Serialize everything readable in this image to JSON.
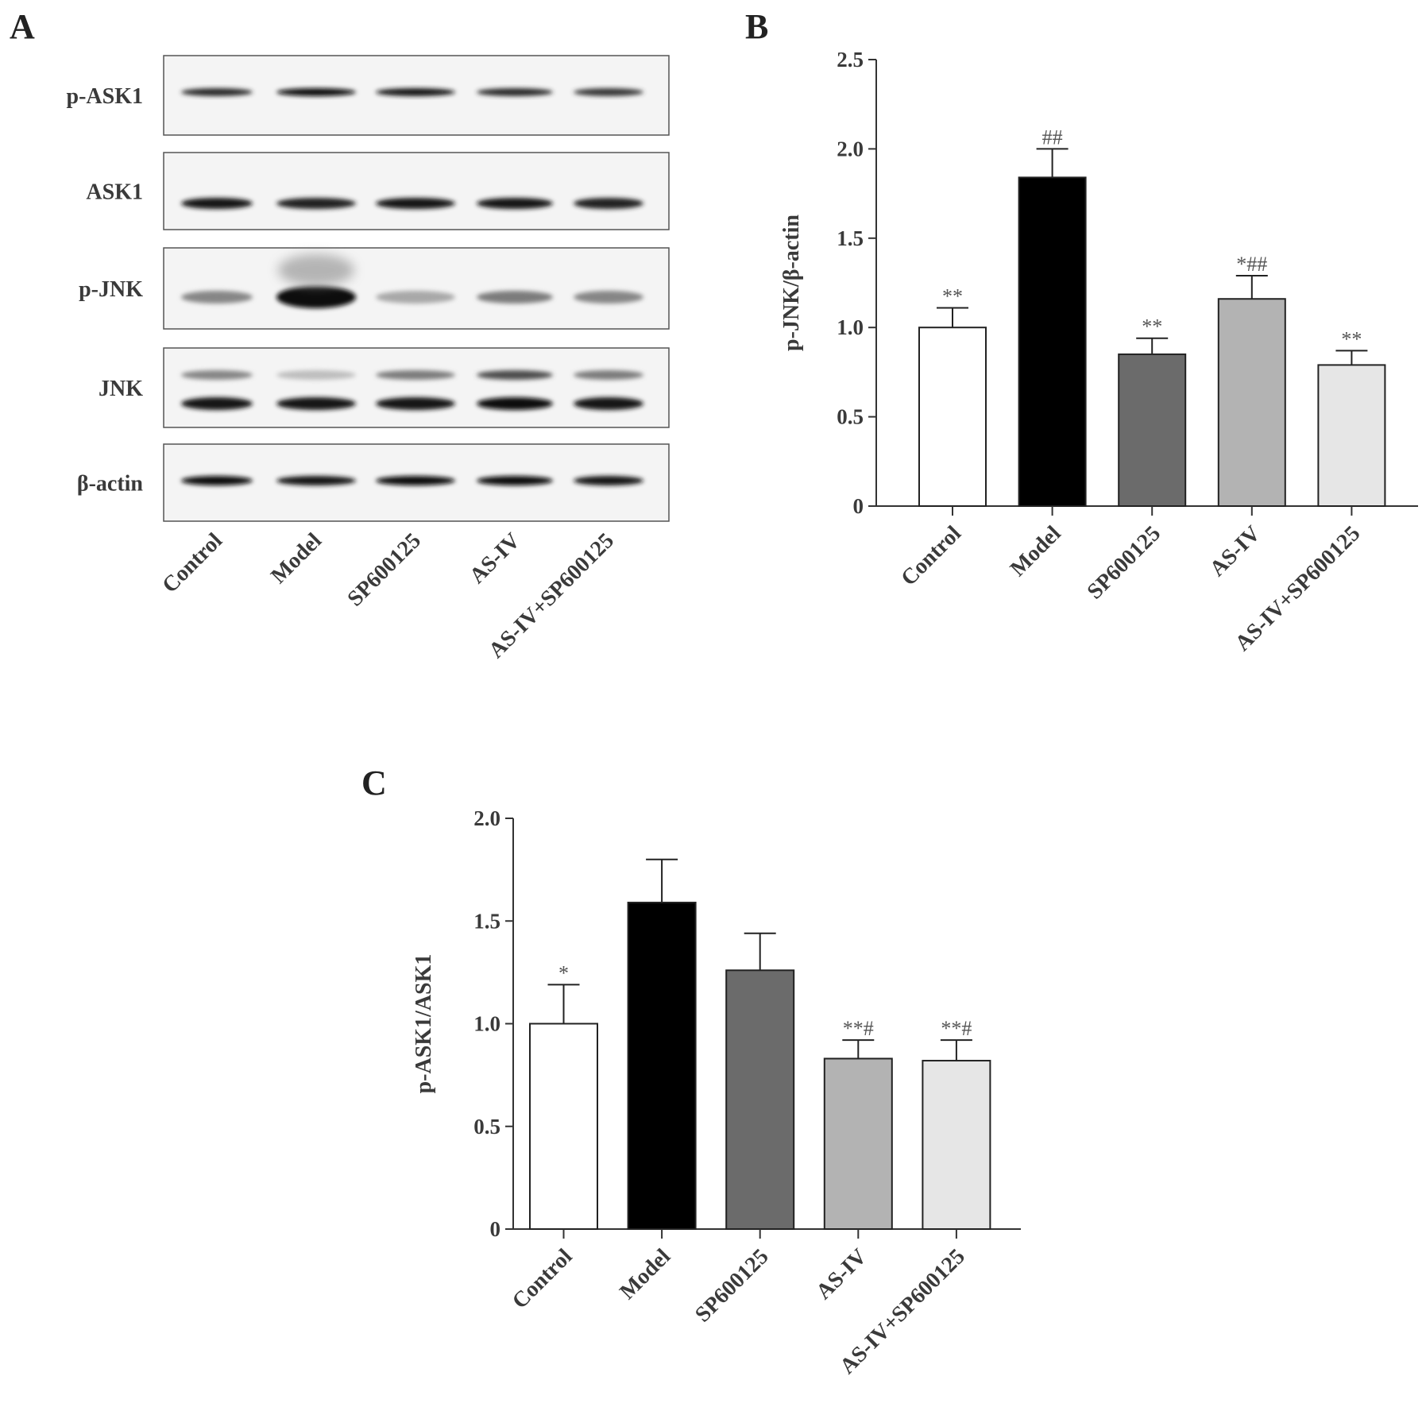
{
  "blot_panel": {
    "letter": "A",
    "rows": [
      "p-ASK1",
      "ASK1",
      "p-JNK",
      "JNK",
      "β-actin"
    ],
    "lanes": [
      "Control",
      "Model",
      "SP600125",
      "AS-IV",
      "AS-IV+SP600125"
    ]
  },
  "chart_data": [
    {
      "panel": "B",
      "type": "bar",
      "categories": [
        "Control",
        "Model",
        "SP600125",
        "AS-IV",
        "AS-IV+SP600125"
      ],
      "values": [
        1.0,
        1.84,
        0.85,
        1.16,
        0.79
      ],
      "errors": [
        0.11,
        0.16,
        0.09,
        0.13,
        0.08
      ],
      "annotations": [
        "**",
        "##",
        "**",
        "*##",
        "**"
      ],
      "bar_colors": [
        "#ffffff",
        "#000000",
        "#6b6b6b",
        "#b3b3b3",
        "#e6e6e6"
      ],
      "ylabel": "p-JNK/β-actin",
      "xlabel": "",
      "ylim": [
        0,
        2.5
      ],
      "yticks": [
        "0",
        "0.5",
        "1.0",
        "1.5",
        "2.0",
        "2.5"
      ],
      "ytick_values": [
        0,
        0.5,
        1.0,
        1.5,
        2.0,
        2.5
      ],
      "grid": false,
      "legend": "none"
    },
    {
      "panel": "C",
      "type": "bar",
      "categories": [
        "Control",
        "Model",
        "SP600125",
        "AS-IV",
        "AS-IV+SP600125"
      ],
      "values": [
        1.0,
        1.59,
        1.26,
        0.83,
        0.82
      ],
      "errors": [
        0.19,
        0.21,
        0.18,
        0.09,
        0.1
      ],
      "annotations": [
        "*",
        "",
        "",
        "**#",
        "**#"
      ],
      "bar_colors": [
        "#ffffff",
        "#000000",
        "#6b6b6b",
        "#b3b3b3",
        "#e6e6e6"
      ],
      "ylabel": "p-ASK1/ASK1",
      "xlabel": "",
      "ylim": [
        0,
        2.0
      ],
      "yticks": [
        "0",
        "0.5",
        "1.0",
        "1.5",
        "2.0"
      ],
      "ytick_values": [
        0,
        0.5,
        1.0,
        1.5,
        2.0
      ],
      "grid": false,
      "legend": "none"
    }
  ]
}
